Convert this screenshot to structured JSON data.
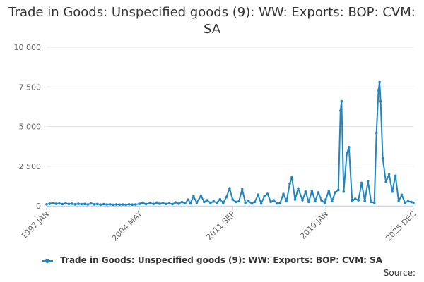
{
  "title": "Trade in Goods: Unspecified goods (9): WW: Exports: BOP: CVM: SA",
  "source_label": "Source:",
  "colors": {
    "series": "#1f86c3",
    "grid": "#e6e6e6",
    "axis": "#ccd6eb"
  },
  "chart_data": {
    "type": "line",
    "title": "Trade in Goods: Unspecified goods (9): WW: Exports: BOP: CVM: SA",
    "xlabel": "",
    "ylabel": "",
    "x_range": [
      "1997 JAN",
      "2025 DEC"
    ],
    "x_tick_labels": [
      "1997 JAN",
      "2004 MAY",
      "2011 SEP",
      "2019 JAN",
      "2025 DEC"
    ],
    "ylim": [
      0,
      10000
    ],
    "y_ticks": [
      0,
      2500,
      5000,
      7500,
      10000
    ],
    "y_tick_labels": [
      "0",
      "2 500",
      "5 000",
      "7 500",
      "10 000"
    ],
    "grid": true,
    "legend_position": "bottom",
    "series": [
      {
        "name": "Trade in Goods: Unspecified goods (9): WW: Exports: BOP: CVM: SA",
        "points": [
          [
            "1997 JAN",
            100
          ],
          [
            "1997 APR",
            140
          ],
          [
            "1997 JUL",
            180
          ],
          [
            "1997 OCT",
            130
          ],
          [
            "1998 JAN",
            150
          ],
          [
            "1998 APR",
            110
          ],
          [
            "1998 JUL",
            160
          ],
          [
            "1998 OCT",
            120
          ],
          [
            "1999 JAN",
            140
          ],
          [
            "1999 APR",
            100
          ],
          [
            "1999 JUL",
            130
          ],
          [
            "1999 OCT",
            110
          ],
          [
            "2000 JAN",
            120
          ],
          [
            "2000 APR",
            90
          ],
          [
            "2000 JUL",
            150
          ],
          [
            "2000 OCT",
            100
          ],
          [
            "2001 JAN",
            120
          ],
          [
            "2001 APR",
            80
          ],
          [
            "2001 JUL",
            110
          ],
          [
            "2001 OCT",
            90
          ],
          [
            "2002 JAN",
            100
          ],
          [
            "2002 APR",
            70
          ],
          [
            "2002 JUL",
            90
          ],
          [
            "2002 OCT",
            80
          ],
          [
            "2003 JAN",
            90
          ],
          [
            "2003 APR",
            70
          ],
          [
            "2003 JUL",
            100
          ],
          [
            "2003 OCT",
            80
          ],
          [
            "2004 JAN",
            90
          ],
          [
            "2004 MAY",
            130
          ],
          [
            "2004 AUG",
            200
          ],
          [
            "2004 NOV",
            110
          ],
          [
            "2005 MAR",
            180
          ],
          [
            "2005 JUN",
            120
          ],
          [
            "2005 SEP",
            210
          ],
          [
            "2005 DEC",
            130
          ],
          [
            "2006 MAR",
            180
          ],
          [
            "2006 JUN",
            120
          ],
          [
            "2006 SEP",
            160
          ],
          [
            "2006 DEC",
            110
          ],
          [
            "2007 MAR",
            220
          ],
          [
            "2007 JUN",
            140
          ],
          [
            "2007 SEP",
            250
          ],
          [
            "2007 DEC",
            160
          ],
          [
            "2008 MAR",
            400
          ],
          [
            "2008 MAY",
            150
          ],
          [
            "2008 AUG",
            600
          ],
          [
            "2008 NOV",
            200
          ],
          [
            "2009 MAR",
            650
          ],
          [
            "2009 JUN",
            250
          ],
          [
            "2009 SEP",
            350
          ],
          [
            "2009 DEC",
            180
          ],
          [
            "2010 MAR",
            280
          ],
          [
            "2010 JUN",
            200
          ],
          [
            "2010 SEP",
            420
          ],
          [
            "2010 DEC",
            180
          ],
          [
            "2011 MAR",
            550
          ],
          [
            "2011 JUN",
            1100
          ],
          [
            "2011 SEP",
            400
          ],
          [
            "2011 DEC",
            250
          ],
          [
            "2012 MAR",
            300
          ],
          [
            "2012 JUN",
            1050
          ],
          [
            "2012 SEP",
            200
          ],
          [
            "2012 DEC",
            300
          ],
          [
            "2013 MAR",
            150
          ],
          [
            "2013 JUN",
            250
          ],
          [
            "2013 SEP",
            700
          ],
          [
            "2013 DEC",
            150
          ],
          [
            "2014 MAR",
            600
          ],
          [
            "2014 JUN",
            750
          ],
          [
            "2014 SEP",
            250
          ],
          [
            "2014 DEC",
            350
          ],
          [
            "2015 MAR",
            150
          ],
          [
            "2015 JUN",
            200
          ],
          [
            "2015 SEP",
            750
          ],
          [
            "2015 DEC",
            300
          ],
          [
            "2016 MAR",
            1400
          ],
          [
            "2016 MAY",
            1800
          ],
          [
            "2016 AUG",
            400
          ],
          [
            "2016 NOV",
            1100
          ],
          [
            "2017 MAR",
            350
          ],
          [
            "2017 JUN",
            900
          ],
          [
            "2017 SEP",
            250
          ],
          [
            "2017 DEC",
            950
          ],
          [
            "2018 MAR",
            300
          ],
          [
            "2018 JUN",
            850
          ],
          [
            "2018 SEP",
            350
          ],
          [
            "2018 DEC",
            200
          ],
          [
            "2019 JAN",
            400
          ],
          [
            "2019 APR",
            950
          ],
          [
            "2019 JUL",
            300
          ],
          [
            "2019 OCT",
            850
          ],
          [
            "2020 JAN",
            1000
          ],
          [
            "2020 MAR",
            6000
          ],
          [
            "2020 APR",
            6600
          ],
          [
            "2020 JUN",
            900
          ],
          [
            "2020 SEP",
            3300
          ],
          [
            "2020 NOV",
            3700
          ],
          [
            "2021 FEB",
            300
          ],
          [
            "2021 MAY",
            450
          ],
          [
            "2021 AUG",
            350
          ],
          [
            "2021 NOV",
            1450
          ],
          [
            "2022 FEB",
            300
          ],
          [
            "2022 MAY",
            1550
          ],
          [
            "2022 AUG",
            250
          ],
          [
            "2022 NOV",
            200
          ],
          [
            "2023 JAN",
            4600
          ],
          [
            "2023 MAR",
            7300
          ],
          [
            "2023 APR",
            7800
          ],
          [
            "2023 MAY",
            6600
          ],
          [
            "2023 JUL",
            3000
          ],
          [
            "2023 OCT",
            1500
          ],
          [
            "2024 JAN",
            2000
          ],
          [
            "2024 APR",
            900
          ],
          [
            "2024 JUL",
            1900
          ],
          [
            "2024 OCT",
            300
          ],
          [
            "2025 JAN",
            700
          ],
          [
            "2025 APR",
            200
          ],
          [
            "2025 JUL",
            300
          ],
          [
            "2025 OCT",
            250
          ],
          [
            "2025 DEC",
            200
          ]
        ]
      }
    ]
  }
}
